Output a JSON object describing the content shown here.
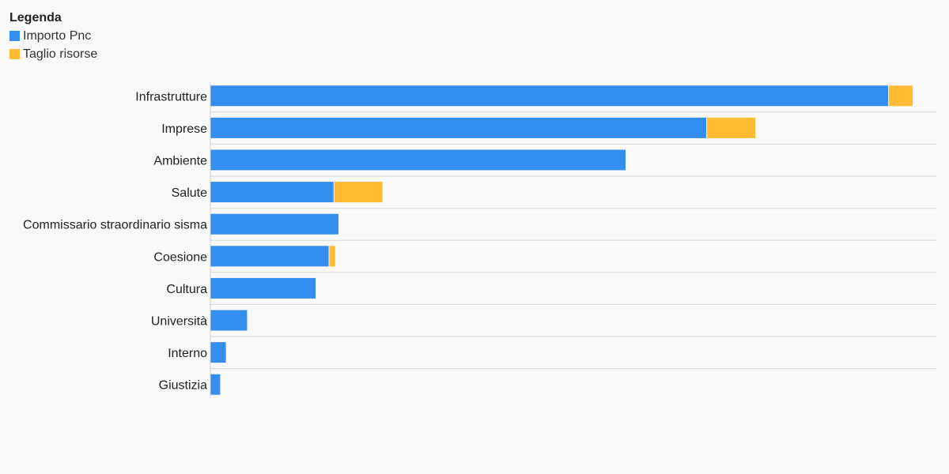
{
  "legend": {
    "title": "Legenda",
    "items": [
      {
        "label": "Importo Pnc",
        "color": "#348ef0"
      },
      {
        "label": "Taglio risorse",
        "color": "#ffbb33"
      }
    ]
  },
  "chart_data": {
    "type": "bar",
    "orientation": "horizontal",
    "stacked": true,
    "categories": [
      "Infrastrutture",
      "Imprese",
      "Ambiente",
      "Salute",
      "Commissario straordinario sisma",
      "Coesione",
      "Cultura",
      "Università",
      "Interno",
      "Giustizia"
    ],
    "series": [
      {
        "name": "Importo Pnc",
        "color": "#348ef0",
        "values": [
          8.31,
          6.08,
          5.09,
          1.51,
          1.57,
          1.45,
          1.29,
          0.45,
          0.19,
          0.12
        ]
      },
      {
        "name": "Taglio risorse",
        "color": "#ffbb33",
        "values": [
          0.3,
          0.6,
          0,
          0.6,
          0,
          0.08,
          0,
          0,
          0,
          0
        ]
      }
    ],
    "xlim": [
      0,
      8.9
    ],
    "grid": true,
    "legend_position": "top-left"
  }
}
